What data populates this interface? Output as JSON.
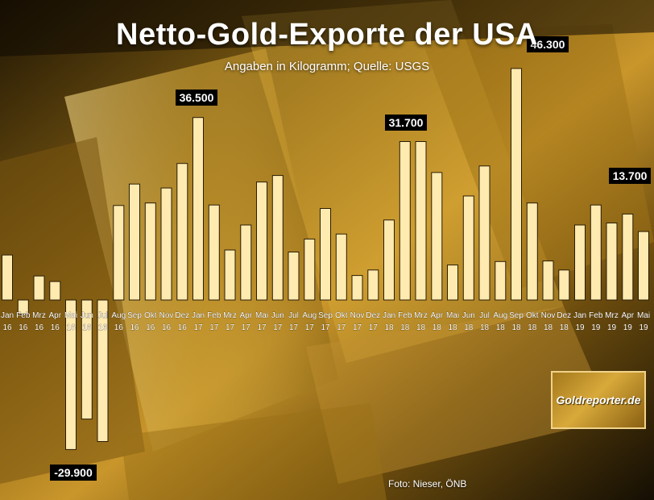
{
  "title": "Netto-Gold-Exporte der USA",
  "subtitle": "Angaben in Kilogramm; Quelle: USGS",
  "credit": "Foto: Nieser, ÖNB",
  "logo_text": "Goldreporter.de",
  "colors": {
    "bar_fill": "#ffeab0",
    "bar_stroke": "#2a1d05",
    "label_bg": "#000000",
    "label_text": "#ffffff",
    "tick_text": "#ffffff"
  },
  "chart_data": {
    "type": "bar",
    "title": "Netto-Gold-Exporte der USA",
    "subtitle": "Angaben in Kilogramm; Quelle: USGS",
    "ylim": [
      -30000,
      47000
    ],
    "grid": false,
    "categories": [
      [
        "Jan",
        "16"
      ],
      [
        "Feb",
        "16"
      ],
      [
        "Mrz",
        "16"
      ],
      [
        "Apr",
        "16"
      ],
      [
        "Mai",
        "16"
      ],
      [
        "Jun",
        "16"
      ],
      [
        "Jul",
        "16"
      ],
      [
        "Aug",
        "16"
      ],
      [
        "Sep",
        "16"
      ],
      [
        "Okt",
        "16"
      ],
      [
        "Nov",
        "16"
      ],
      [
        "Dez",
        "16"
      ],
      [
        "Jan",
        "17"
      ],
      [
        "Feb",
        "17"
      ],
      [
        "Mrz",
        "17"
      ],
      [
        "Apr",
        "17"
      ],
      [
        "Mai",
        "17"
      ],
      [
        "Jun",
        "17"
      ],
      [
        "Jul",
        "17"
      ],
      [
        "Aug",
        "17"
      ],
      [
        "Sep",
        "17"
      ],
      [
        "Okt",
        "17"
      ],
      [
        "Nov",
        "17"
      ],
      [
        "Dez",
        "17"
      ],
      [
        "Jan",
        "18"
      ],
      [
        "Feb",
        "18"
      ],
      [
        "Mrz",
        "18"
      ],
      [
        "Apr",
        "18"
      ],
      [
        "Mai",
        "18"
      ],
      [
        "Jun",
        "18"
      ],
      [
        "Jul",
        "18"
      ],
      [
        "Aug",
        "18"
      ],
      [
        "Sep",
        "18"
      ],
      [
        "Okt",
        "18"
      ],
      [
        "Nov",
        "18"
      ],
      [
        "Dez",
        "18"
      ],
      [
        "Jan",
        "19"
      ],
      [
        "Feb",
        "19"
      ],
      [
        "Mrz",
        "19"
      ],
      [
        "Apr",
        "19"
      ],
      [
        "Mai",
        "19"
      ]
    ],
    "values": [
      9000,
      -2800,
      4800,
      3700,
      -29900,
      -23800,
      -28300,
      18900,
      23200,
      19400,
      22400,
      27300,
      36500,
      19000,
      10000,
      15000,
      23600,
      24900,
      9600,
      12200,
      18300,
      13200,
      4900,
      6000,
      16000,
      31700,
      31700,
      25500,
      7000,
      20800,
      26800,
      7700,
      46300,
      19400,
      7800,
      6000,
      15000,
      19000,
      15400,
      17200,
      13700
    ],
    "data_labels": [
      {
        "index": 4,
        "text": "-29.900"
      },
      {
        "index": 12,
        "text": "36.500"
      },
      {
        "index": 25,
        "text": "31.700"
      },
      {
        "index": 32,
        "text": "46.300"
      },
      {
        "index": 40,
        "text": "13.700"
      }
    ]
  }
}
